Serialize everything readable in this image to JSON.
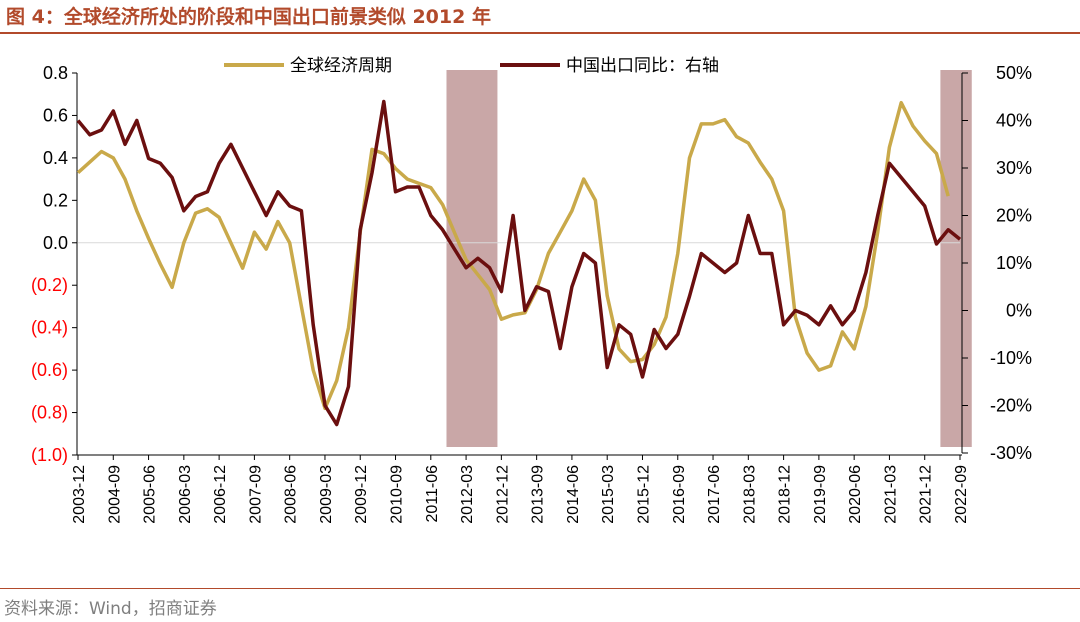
{
  "title": "图 4：全球经济所处的阶段和中国出口前景类似 2012 年",
  "source": "资料来源：Wind，招商证券",
  "colors": {
    "global_cycle": "#c9a94a",
    "china_export": "#6b0f0f",
    "shade": "#c9a7a7",
    "title": "#b24a2b"
  },
  "chart_data": {
    "type": "line",
    "title": "全球经济所处的阶段和中国出口前景类似 2012 年",
    "xlabel": "",
    "ylabel": "",
    "y2label": "",
    "ylim": [
      -1.0,
      0.8
    ],
    "y2lim": [
      -30,
      50
    ],
    "yticks": [
      "0.8",
      "0.6",
      "0.4",
      "0.2",
      "0.0",
      "(0.2)",
      "(0.4)",
      "(0.6)",
      "(0.8)",
      "(1.0)"
    ],
    "y2ticks": [
      "50%",
      "40%",
      "30%",
      "20%",
      "10%",
      "0%",
      "-10%",
      "-20%",
      "-30%"
    ],
    "xticks": [
      "2003-12",
      "2004-09",
      "2005-06",
      "2006-03",
      "2006-12",
      "2007-09",
      "2008-06",
      "2009-03",
      "2009-12",
      "2010-09",
      "2011-06",
      "2012-03",
      "2012-12",
      "2013-09",
      "2014-06",
      "2015-03",
      "2015-12",
      "2016-09",
      "2017-06",
      "2018-03",
      "2018-12",
      "2019-09",
      "2020-06",
      "2021-03",
      "2021-12",
      "2022-09"
    ],
    "shaded_periods": [
      [
        "2011-10",
        "2012-11"
      ],
      [
        "2022-04",
        "2022-12"
      ]
    ],
    "series": [
      {
        "name": "全球经济周期",
        "axis": "left",
        "points": [
          [
            "2003-12",
            0.33
          ],
          [
            "2004-03",
            0.38
          ],
          [
            "2004-06",
            0.43
          ],
          [
            "2004-09",
            0.4
          ],
          [
            "2004-12",
            0.3
          ],
          [
            "2005-03",
            0.15
          ],
          [
            "2005-06",
            0.02
          ],
          [
            "2005-09",
            -0.1
          ],
          [
            "2005-12",
            -0.21
          ],
          [
            "2006-03",
            0.0
          ],
          [
            "2006-06",
            0.14
          ],
          [
            "2006-09",
            0.16
          ],
          [
            "2006-12",
            0.12
          ],
          [
            "2007-03",
            0.0
          ],
          [
            "2007-06",
            -0.12
          ],
          [
            "2007-09",
            0.05
          ],
          [
            "2007-12",
            -0.03
          ],
          [
            "2008-03",
            0.1
          ],
          [
            "2008-06",
            0.0
          ],
          [
            "2008-09",
            -0.3
          ],
          [
            "2008-12",
            -0.6
          ],
          [
            "2009-03",
            -0.78
          ],
          [
            "2009-06",
            -0.65
          ],
          [
            "2009-09",
            -0.4
          ],
          [
            "2009-12",
            0.05
          ],
          [
            "2010-03",
            0.44
          ],
          [
            "2010-06",
            0.42
          ],
          [
            "2010-09",
            0.35
          ],
          [
            "2010-12",
            0.3
          ],
          [
            "2011-03",
            0.28
          ],
          [
            "2011-06",
            0.26
          ],
          [
            "2011-09",
            0.18
          ],
          [
            "2011-12",
            0.05
          ],
          [
            "2012-03",
            -0.08
          ],
          [
            "2012-06",
            -0.15
          ],
          [
            "2012-09",
            -0.22
          ],
          [
            "2012-12",
            -0.36
          ],
          [
            "2013-03",
            -0.34
          ],
          [
            "2013-06",
            -0.33
          ],
          [
            "2013-09",
            -0.22
          ],
          [
            "2013-12",
            -0.05
          ],
          [
            "2014-03",
            0.05
          ],
          [
            "2014-06",
            0.15
          ],
          [
            "2014-09",
            0.3
          ],
          [
            "2014-12",
            0.2
          ],
          [
            "2015-03",
            -0.25
          ],
          [
            "2015-06",
            -0.5
          ],
          [
            "2015-09",
            -0.56
          ],
          [
            "2015-12",
            -0.55
          ],
          [
            "2016-03",
            -0.48
          ],
          [
            "2016-06",
            -0.35
          ],
          [
            "2016-09",
            -0.05
          ],
          [
            "2016-12",
            0.4
          ],
          [
            "2017-03",
            0.56
          ],
          [
            "2017-06",
            0.56
          ],
          [
            "2017-09",
            0.58
          ],
          [
            "2017-12",
            0.5
          ],
          [
            "2018-03",
            0.47
          ],
          [
            "2018-06",
            0.38
          ],
          [
            "2018-09",
            0.3
          ],
          [
            "2018-12",
            0.15
          ],
          [
            "2019-03",
            -0.35
          ],
          [
            "2019-06",
            -0.52
          ],
          [
            "2019-09",
            -0.6
          ],
          [
            "2019-12",
            -0.58
          ],
          [
            "2020-03",
            -0.42
          ],
          [
            "2020-06",
            -0.5
          ],
          [
            "2020-09",
            -0.3
          ],
          [
            "2020-12",
            0.05
          ],
          [
            "2021-03",
            0.45
          ],
          [
            "2021-06",
            0.66
          ],
          [
            "2021-09",
            0.55
          ],
          [
            "2021-12",
            0.48
          ],
          [
            "2022-03",
            0.42
          ],
          [
            "2022-06",
            0.22
          ]
        ]
      },
      {
        "name": "中国出口同比：右轴",
        "axis": "right",
        "points": [
          [
            "2003-12",
            40
          ],
          [
            "2004-03",
            37
          ],
          [
            "2004-06",
            38
          ],
          [
            "2004-09",
            42
          ],
          [
            "2004-12",
            35
          ],
          [
            "2005-03",
            40
          ],
          [
            "2005-06",
            32
          ],
          [
            "2005-09",
            31
          ],
          [
            "2005-12",
            28
          ],
          [
            "2006-03",
            21
          ],
          [
            "2006-06",
            24
          ],
          [
            "2006-09",
            25
          ],
          [
            "2006-12",
            31
          ],
          [
            "2007-03",
            35
          ],
          [
            "2007-06",
            30
          ],
          [
            "2007-09",
            25
          ],
          [
            "2007-12",
            20
          ],
          [
            "2008-03",
            25
          ],
          [
            "2008-06",
            22
          ],
          [
            "2008-09",
            21
          ],
          [
            "2008-12",
            -3
          ],
          [
            "2009-03",
            -20
          ],
          [
            "2009-06",
            -24
          ],
          [
            "2009-09",
            -16
          ],
          [
            "2009-12",
            17
          ],
          [
            "2010-03",
            29
          ],
          [
            "2010-06",
            44
          ],
          [
            "2010-09",
            25
          ],
          [
            "2010-12",
            26
          ],
          [
            "2011-03",
            26
          ],
          [
            "2011-06",
            20
          ],
          [
            "2011-09",
            17
          ],
          [
            "2011-12",
            13
          ],
          [
            "2012-03",
            9
          ],
          [
            "2012-06",
            11
          ],
          [
            "2012-09",
            9
          ],
          [
            "2012-12",
            4
          ],
          [
            "2013-03",
            20
          ],
          [
            "2013-06",
            0
          ],
          [
            "2013-09",
            5
          ],
          [
            "2013-12",
            4
          ],
          [
            "2014-03",
            -8
          ],
          [
            "2014-06",
            5
          ],
          [
            "2014-09",
            12
          ],
          [
            "2014-12",
            10
          ],
          [
            "2015-03",
            -12
          ],
          [
            "2015-06",
            -3
          ],
          [
            "2015-09",
            -5
          ],
          [
            "2015-12",
            -14
          ],
          [
            "2016-03",
            -4
          ],
          [
            "2016-06",
            -8
          ],
          [
            "2016-09",
            -5
          ],
          [
            "2016-12",
            3
          ],
          [
            "2017-03",
            12
          ],
          [
            "2017-06",
            10
          ],
          [
            "2017-09",
            8
          ],
          [
            "2017-12",
            10
          ],
          [
            "2018-03",
            20
          ],
          [
            "2018-06",
            12
          ],
          [
            "2018-09",
            12
          ],
          [
            "2018-12",
            -3
          ],
          [
            "2019-03",
            0
          ],
          [
            "2019-06",
            -1
          ],
          [
            "2019-09",
            -3
          ],
          [
            "2019-12",
            1
          ],
          [
            "2020-03",
            -3
          ],
          [
            "2020-06",
            0
          ],
          [
            "2020-09",
            8
          ],
          [
            "2020-12",
            20
          ],
          [
            "2021-03",
            31
          ],
          [
            "2021-06",
            28
          ],
          [
            "2021-09",
            25
          ],
          [
            "2021-12",
            22
          ],
          [
            "2022-03",
            14
          ],
          [
            "2022-06",
            17
          ],
          [
            "2022-09",
            15
          ]
        ]
      }
    ],
    "legend": {
      "position": "top",
      "entries": [
        "全球经济周期",
        "中国出口同比：右轴"
      ]
    },
    "grid": false
  }
}
